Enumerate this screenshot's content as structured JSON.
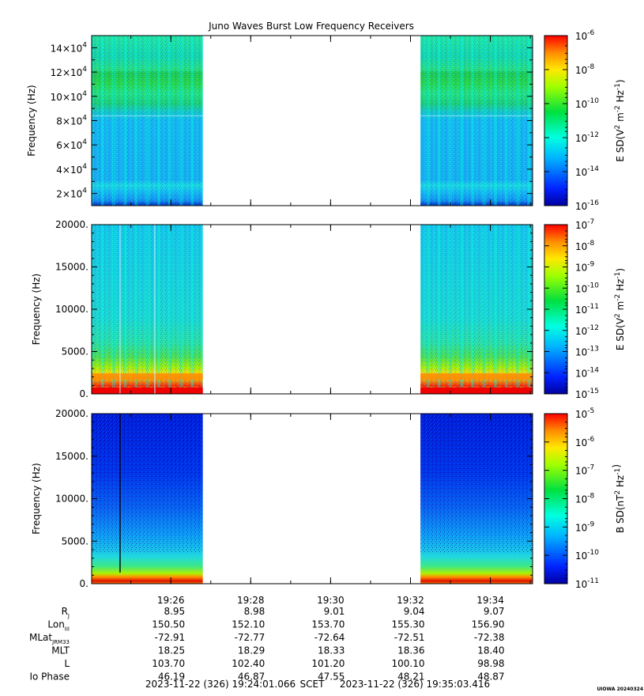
{
  "title": "Juno Waves Burst Low Frequency Receivers",
  "panels": [
    {
      "ylabel": "Frequency (Hz)",
      "yticks": [
        {
          "mant": "2",
          "exp": "4"
        },
        {
          "mant": "4",
          "exp": "4"
        },
        {
          "mant": "6",
          "exp": "4"
        },
        {
          "mant": "8",
          "exp": "4"
        },
        {
          "mant": "10",
          "exp": "4"
        },
        {
          "mant": "12",
          "exp": "4"
        },
        {
          "mant": "14",
          "exp": "4"
        }
      ],
      "cb_label": {
        "base": "E SD(V",
        "sup1": "2",
        "mid": " m",
        "sup2": "-2",
        "mid2": " Hz",
        "sup3": "-1",
        "end": ")"
      },
      "cb_ticks": [
        "-6",
        "-8",
        "-10",
        "-12",
        "-14",
        "-16"
      ]
    },
    {
      "ylabel": "Frequency (Hz)",
      "yticks": [
        "0.",
        "5000.",
        "10000.",
        "15000.",
        "20000."
      ],
      "cb_label": {
        "base": "E SD(V",
        "sup1": "2",
        "mid": " m",
        "sup2": "-2",
        "mid2": " Hz",
        "sup3": "-1",
        "end": ")"
      },
      "cb_ticks": [
        "-7",
        "-8",
        "-9",
        "-10",
        "-11",
        "-12",
        "-13",
        "-14",
        "-15"
      ]
    },
    {
      "ylabel": "Frequency (Hz)",
      "yticks": [
        "0.",
        "5000.",
        "10000.",
        "15000.",
        "20000."
      ],
      "cb_label": {
        "base": "B SD(nT",
        "sup1": "2",
        "mid": " Hz",
        "sup2": "-1",
        "mid2": "",
        "sup3": "",
        "end": ")"
      },
      "cb_ticks": [
        "-5",
        "-6",
        "-7",
        "-8",
        "-9",
        "-10",
        "-11"
      ]
    }
  ],
  "chart_data": [
    {
      "type": "heatmap",
      "title": "Juno Waves Burst Low Frequency Receivers",
      "ylabel": "Frequency (Hz)",
      "ylim": [
        10000,
        150000
      ],
      "zlabel": "E SD(V^2 m^-2 Hz^-1)",
      "zlim": [
        1e-16,
        1e-06
      ],
      "z_scale": "log",
      "data_intervals": [
        [
          "19:24:01",
          "19:26:48"
        ],
        [
          "19:32:15",
          "19:35:03"
        ]
      ]
    },
    {
      "type": "heatmap",
      "ylabel": "Frequency (Hz)",
      "ylim": [
        0,
        20000
      ],
      "zlabel": "E SD(V^2 m^-2 Hz^-1)",
      "zlim": [
        1e-15,
        1e-07
      ],
      "z_scale": "log",
      "data_intervals": [
        [
          "19:24:01",
          "19:26:48"
        ],
        [
          "19:32:15",
          "19:35:03"
        ]
      ]
    },
    {
      "type": "heatmap",
      "ylabel": "Frequency (Hz)",
      "ylim": [
        0,
        20000
      ],
      "zlabel": "B SD(nT^2 Hz^-1)",
      "zlim": [
        1e-11,
        0.0001
      ],
      "z_scale": "log",
      "data_intervals": [
        [
          "19:24:01",
          "19:26:48"
        ],
        [
          "19:32:15",
          "19:35:03"
        ]
      ]
    }
  ],
  "xaxis": {
    "ticks": [
      "19:26",
      "19:28",
      "19:30",
      "19:32",
      "19:34"
    ],
    "ephemeris": [
      {
        "label": "R",
        "sub": "J",
        "values": [
          "8.95",
          "8.98",
          "9.01",
          "9.04",
          "9.07"
        ]
      },
      {
        "label": "Lon",
        "sub": "III",
        "values": [
          "150.50",
          "152.10",
          "153.70",
          "155.30",
          "156.90"
        ]
      },
      {
        "label": "MLat",
        "sub": "JRM33",
        "values": [
          "-72.91",
          "-72.77",
          "-72.64",
          "-72.51",
          "-72.38"
        ]
      },
      {
        "label": "MLT",
        "sub": "",
        "values": [
          "18.25",
          "18.29",
          "18.33",
          "18.36",
          "18.40"
        ]
      },
      {
        "label": "L",
        "sub": "",
        "values": [
          "103.70",
          "102.40",
          "101.20",
          "100.10",
          "98.98"
        ]
      },
      {
        "label": "Io Phase",
        "sub": "",
        "values": [
          "46.19",
          "46.87",
          "47.55",
          "48.21",
          "48.87"
        ]
      }
    ]
  },
  "footer": {
    "start": "2023-11-22 (326) 19:24:01.066",
    "scet": "SCET",
    "end": "2023-11-22 (326) 19:35:03.416",
    "stamp": "UIOWA 20240324"
  }
}
